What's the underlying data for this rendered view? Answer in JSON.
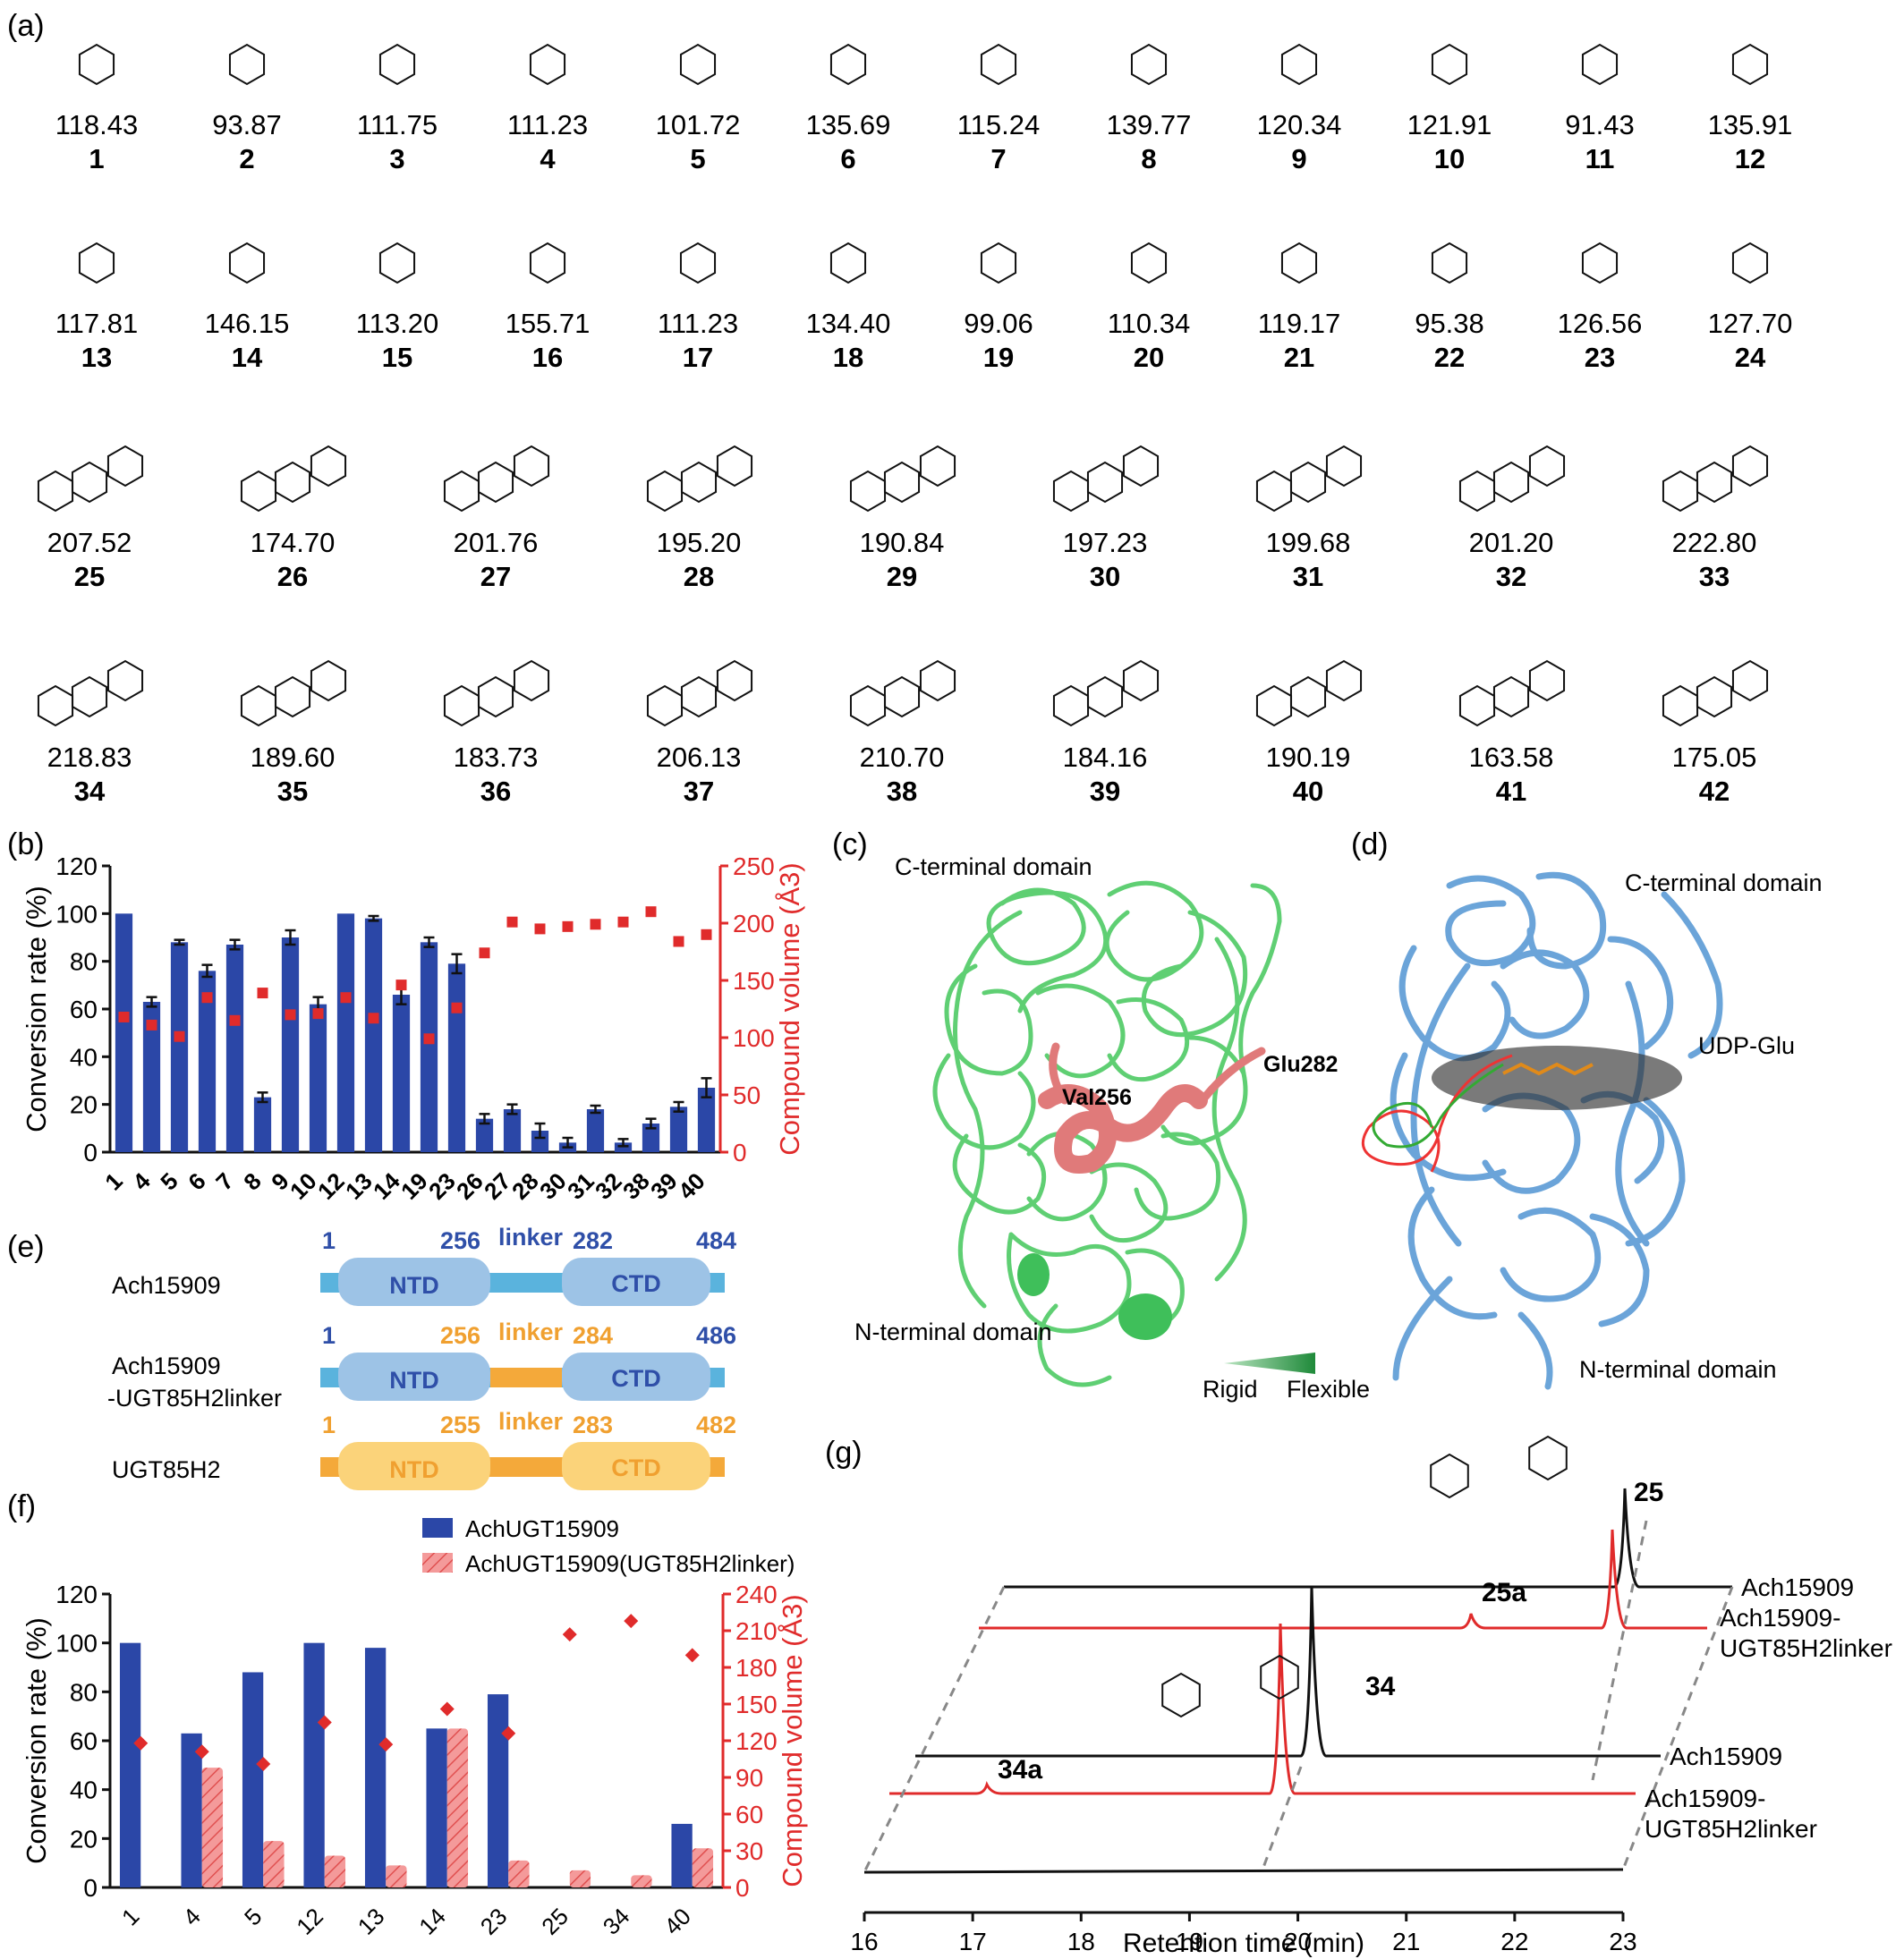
{
  "panels": {
    "a": "(a)",
    "b": "(b)",
    "c": "(c)",
    "d": "(d)",
    "e": "(e)",
    "f": "(f)",
    "g": "(g)"
  },
  "compounds": [
    {
      "id": "1",
      "volume": "118.43"
    },
    {
      "id": "2",
      "volume": "93.87"
    },
    {
      "id": "3",
      "volume": "111.75"
    },
    {
      "id": "4",
      "volume": "111.23"
    },
    {
      "id": "5",
      "volume": "101.72"
    },
    {
      "id": "6",
      "volume": "135.69"
    },
    {
      "id": "7",
      "volume": "115.24"
    },
    {
      "id": "8",
      "volume": "139.77"
    },
    {
      "id": "9",
      "volume": "120.34"
    },
    {
      "id": "10",
      "volume": "121.91"
    },
    {
      "id": "11",
      "volume": "91.43"
    },
    {
      "id": "12",
      "volume": "135.91"
    },
    {
      "id": "13",
      "volume": "117.81"
    },
    {
      "id": "14",
      "volume": "146.15"
    },
    {
      "id": "15",
      "volume": "113.20"
    },
    {
      "id": "16",
      "volume": "155.71"
    },
    {
      "id": "17",
      "volume": "111.23"
    },
    {
      "id": "18",
      "volume": "134.40"
    },
    {
      "id": "19",
      "volume": "99.06"
    },
    {
      "id": "20",
      "volume": "110.34"
    },
    {
      "id": "21",
      "volume": "119.17"
    },
    {
      "id": "22",
      "volume": "95.38"
    },
    {
      "id": "23",
      "volume": "126.56"
    },
    {
      "id": "24",
      "volume": "127.70"
    },
    {
      "id": "25",
      "volume": "207.52"
    },
    {
      "id": "26",
      "volume": "174.70"
    },
    {
      "id": "27",
      "volume": "201.76"
    },
    {
      "id": "28",
      "volume": "195.20"
    },
    {
      "id": "29",
      "volume": "190.84"
    },
    {
      "id": "30",
      "volume": "197.23"
    },
    {
      "id": "31",
      "volume": "199.68"
    },
    {
      "id": "32",
      "volume": "201.20"
    },
    {
      "id": "33",
      "volume": "222.80"
    },
    {
      "id": "34",
      "volume": "218.83"
    },
    {
      "id": "35",
      "volume": "189.60"
    },
    {
      "id": "36",
      "volume": "183.73"
    },
    {
      "id": "37",
      "volume": "206.13"
    },
    {
      "id": "38",
      "volume": "210.70"
    },
    {
      "id": "39",
      "volume": "184.16"
    },
    {
      "id": "40",
      "volume": "190.19"
    },
    {
      "id": "41",
      "volume": "163.58"
    },
    {
      "id": "42",
      "volume": "175.05"
    }
  ],
  "panel_c": {
    "title": "C-terminal domain",
    "bottom": "N-terminal domain",
    "res1": "Val256",
    "res2": "Glu282",
    "rigid": "Rigid",
    "flexible": "Flexible",
    "colors": {
      "protein": "#5fcf73",
      "loop": "#e07a7a"
    }
  },
  "panel_d": {
    "top": "C-terminal domain",
    "ligand": "UDP-Glu",
    "bottom": "N-terminal domain",
    "colors": {
      "protein": "#5b9bd5"
    }
  },
  "panel_e": {
    "rows": [
      {
        "name": "Ach15909",
        "n1": "1",
        "n2": "256",
        "linker": "linker",
        "n3": "282",
        "n4": "484",
        "ntd": "NTD",
        "ctd": "CTD"
      },
      {
        "name1": "Ach15909",
        "name2": "-UGT85H2linker",
        "n1": "1",
        "n2": "256",
        "linker": "linker",
        "n3": "284",
        "n4": "486",
        "ntd": "NTD",
        "ctd": "CTD"
      },
      {
        "name": "UGT85H2",
        "n1": "1",
        "n2": "255",
        "linker": "linker",
        "n3": "283",
        "n4": "482",
        "ntd": "NTD",
        "ctd": "CTD"
      }
    ],
    "colors": {
      "blue_bar": "#5ab3dd",
      "blue_box": "#9dc3e6",
      "blue_text": "#2f4fa8",
      "orange_bar": "#f4a93a",
      "orange_box": "#fbd37a",
      "orange_text": "#f0a030"
    }
  },
  "chart_data": [
    {
      "type": "bar",
      "panel": "b",
      "categories": [
        "1",
        "4",
        "5",
        "6",
        "7",
        "8",
        "9",
        "10",
        "12",
        "13",
        "14",
        "19",
        "23",
        "26",
        "27",
        "28",
        "30",
        "31",
        "32",
        "38",
        "39",
        "40"
      ],
      "series": [
        {
          "values": [
            100,
            63,
            88,
            76,
            87,
            23,
            90,
            62,
            100,
            98,
            66,
            88,
            79,
            14,
            18,
            9,
            4,
            18,
            4,
            12,
            19,
            27
          ],
          "errors": [
            0,
            2,
            1,
            2.5,
            2,
            2,
            3,
            3,
            0,
            1,
            4,
            2,
            4,
            2,
            2,
            3,
            2,
            1.5,
            1.5,
            2,
            2,
            4
          ],
          "color": "#2b47a7"
        },
        {
          "values": [
            118,
            111,
            101,
            135,
            115,
            139,
            120,
            121,
            135,
            117,
            146,
            99,
            126,
            174,
            201,
            195,
            197,
            199,
            201,
            210,
            184,
            190
          ],
          "color": "#e02b2b",
          "axis": "right"
        }
      ],
      "ylabel": "Conversion rate (%)",
      "y2label": "Compound volume (Å3)",
      "ylim": [
        0,
        120
      ],
      "y2lim": [
        0,
        250
      ],
      "yticks": [
        "0",
        "20",
        "40",
        "60",
        "80",
        "100",
        "120"
      ],
      "y2ticks": [
        "0",
        "50",
        "100",
        "150",
        "200",
        "250"
      ]
    },
    {
      "type": "bar",
      "panel": "f",
      "categories": [
        "1",
        "4",
        "5",
        "12",
        "13",
        "14",
        "23",
        "25",
        "34",
        "40"
      ],
      "series": [
        {
          "name": "AchUGT15909",
          "values": [
            100,
            63,
            88,
            100,
            98,
            65,
            79,
            0,
            0,
            26
          ],
          "color": "#2b47a7"
        },
        {
          "name": "AchUGT15909(UGT85H2linker)",
          "values": [
            0,
            49,
            19,
            13,
            9,
            65,
            11,
            7,
            5,
            16
          ],
          "color": "#f07a7a"
        },
        {
          "values": [
            118,
            111,
            101,
            135,
            117,
            146,
            126,
            207,
            218,
            190
          ],
          "color": "#e02b2b",
          "axis": "right"
        }
      ],
      "ylabel": "Conversion rate (%)",
      "y2label": "Compound volume (Å3)",
      "ylim": [
        0,
        120
      ],
      "y2lim": [
        0,
        240
      ],
      "yticks": [
        "0",
        "20",
        "40",
        "60",
        "80",
        "100",
        "120"
      ],
      "y2ticks": [
        "0",
        "30",
        "60",
        "90",
        "120",
        "150",
        "180",
        "210",
        "240"
      ]
    },
    {
      "type": "line",
      "panel": "g",
      "xlabel": "Retention time (min)",
      "xticks": [
        "16",
        "17",
        "18",
        "19",
        "20",
        "21",
        "22",
        "23"
      ],
      "peak_labels": [
        "25",
        "25a",
        "34",
        "34a"
      ],
      "trace_labels": [
        "Ach15909",
        "Ach15909-",
        "UGT85H2linker",
        "Ach15909",
        "Ach15909-",
        "UGT85H2linker"
      ]
    }
  ]
}
